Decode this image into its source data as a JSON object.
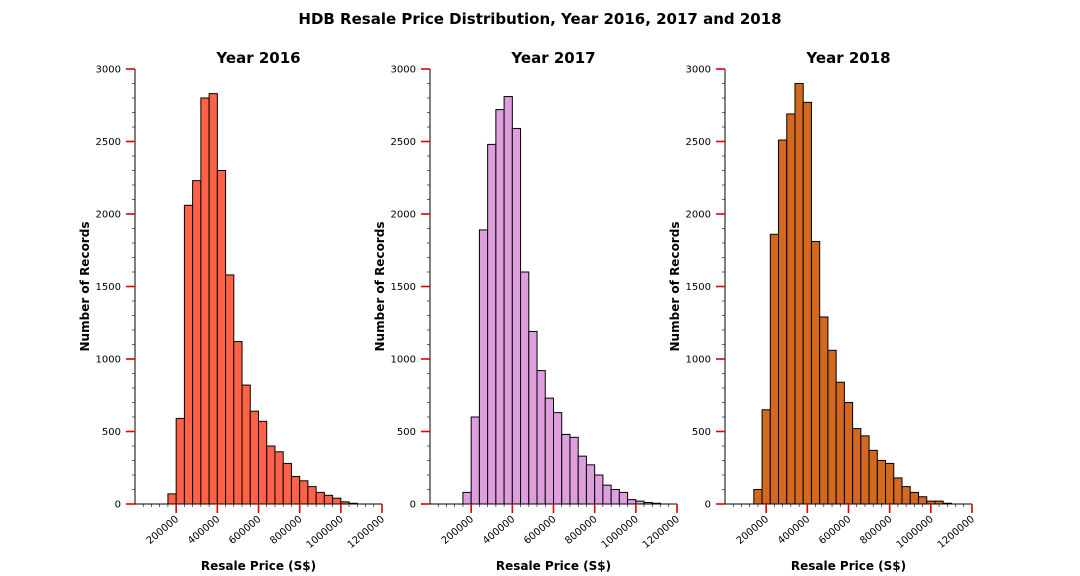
{
  "figure": {
    "suptitle": "HDB Resale Price Distribution, Year 2016, 2017 and 2018"
  },
  "colors": {
    "tick_major": "#e00000",
    "edge": "#000000",
    "background": "#ffffff"
  },
  "chart_data": [
    {
      "type": "bar",
      "title": "Year 2016",
      "xlabel": "Resale Price (S$)",
      "ylabel": "Number of Records",
      "color": "#ff6347",
      "xlim": [
        0,
        1200000
      ],
      "ylim": [
        0,
        3000
      ],
      "xticks": [
        "200000",
        "400000",
        "600000",
        "800000",
        "1000000",
        "1200000"
      ],
      "yticks": [
        "0",
        "500",
        "1000",
        "1500",
        "2000",
        "2500",
        "3000"
      ],
      "bin_edges": [
        160000,
        200000,
        240000,
        280000,
        320000,
        360000,
        400000,
        440000,
        480000,
        520000,
        560000,
        600000,
        640000,
        680000,
        720000,
        760000,
        800000,
        840000,
        880000,
        920000,
        960000,
        1000000,
        1040000,
        1080000,
        1120000
      ],
      "values": [
        70,
        590,
        2060,
        2230,
        2800,
        2830,
        2300,
        1580,
        1120,
        820,
        640,
        570,
        400,
        360,
        280,
        190,
        160,
        120,
        80,
        60,
        40,
        15,
        5,
        0
      ]
    },
    {
      "type": "bar",
      "title": "Year 2017",
      "xlabel": "Resale Price (S$)",
      "ylabel": "Number of Records",
      "color": "#dda0dd",
      "xlim": [
        0,
        1200000
      ],
      "ylim": [
        0,
        3000
      ],
      "xticks": [
        "200000",
        "400000",
        "600000",
        "800000",
        "1000000",
        "1200000"
      ],
      "yticks": [
        "0",
        "500",
        "1000",
        "1500",
        "2000",
        "2500",
        "3000"
      ],
      "bin_edges": [
        160000,
        200000,
        240000,
        280000,
        320000,
        360000,
        400000,
        440000,
        480000,
        520000,
        560000,
        600000,
        640000,
        680000,
        720000,
        760000,
        800000,
        840000,
        880000,
        920000,
        960000,
        1000000,
        1040000,
        1080000,
        1120000
      ],
      "values": [
        80,
        600,
        1890,
        2480,
        2720,
        2810,
        2590,
        1600,
        1190,
        920,
        730,
        630,
        480,
        460,
        330,
        270,
        200,
        130,
        100,
        80,
        30,
        20,
        10,
        5
      ]
    },
    {
      "type": "bar",
      "title": "Year 2018",
      "xlabel": "Resale Price (S$)",
      "ylabel": "Number of Records",
      "color": "#d2691e",
      "xlim": [
        0,
        1200000
      ],
      "ylim": [
        0,
        3000
      ],
      "xticks": [
        "200000",
        "400000",
        "600000",
        "800000",
        "1000000",
        "1200000"
      ],
      "yticks": [
        "0",
        "500",
        "1000",
        "1500",
        "2000",
        "2500",
        "3000"
      ],
      "bin_edges": [
        140000,
        180000,
        220000,
        260000,
        300000,
        340000,
        380000,
        420000,
        460000,
        500000,
        540000,
        580000,
        620000,
        660000,
        700000,
        740000,
        780000,
        820000,
        860000,
        900000,
        940000,
        980000,
        1020000,
        1060000,
        1100000
      ],
      "values": [
        100,
        650,
        1860,
        2510,
        2690,
        2900,
        2770,
        1810,
        1290,
        1060,
        840,
        700,
        520,
        470,
        370,
        300,
        280,
        180,
        120,
        80,
        50,
        20,
        20,
        5
      ]
    }
  ]
}
